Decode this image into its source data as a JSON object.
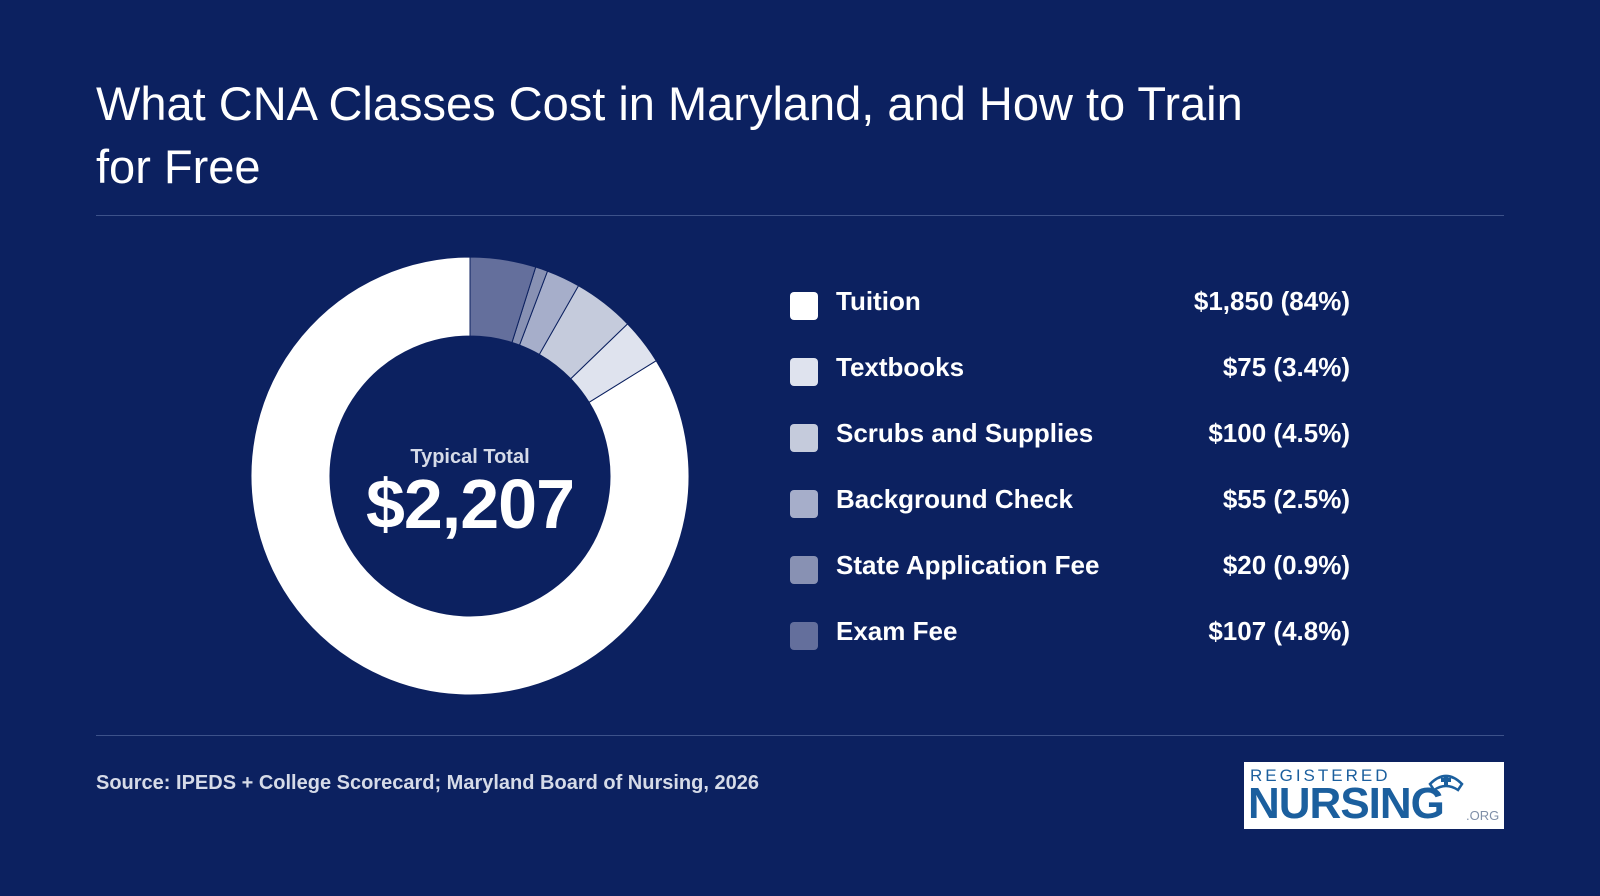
{
  "header": {
    "title": "What CNA Classes Cost in Maryland, and How to Train for Free"
  },
  "chart_data": {
    "type": "pie",
    "style": "donut",
    "categories": [
      "Tuition",
      "Textbooks",
      "Scrubs and Supplies",
      "Background Check",
      "State Application Fee",
      "Exam Fee"
    ],
    "values": [
      1850,
      75,
      100,
      55,
      20,
      107
    ],
    "percents": [
      84,
      3.4,
      4.5,
      2.5,
      0.9,
      4.8
    ],
    "value_labels": [
      "$1,850 (84%)",
      "$75 (3.4%)",
      "$100 (4.5%)",
      "$55 (2.5%)",
      "$20 (0.9%)",
      "$107 (4.8%)"
    ],
    "colors": [
      "#ffffff",
      "#dfe3ee",
      "#c5cbdc",
      "#a6aeca",
      "#8891b3",
      "#646f9c"
    ],
    "center_label": "Typical Total",
    "center_value": "$2,207",
    "legend_position": "right"
  },
  "footer": {
    "source": "Source: IPEDS + College Scorecard; Maryland Board of Nursing, 2026"
  },
  "logo": {
    "top_text": "REGISTERED",
    "main_text": "NURSING",
    "suffix_text": ".ORG",
    "color": "#1b5f9e"
  },
  "theme": {
    "background": "#0c2160",
    "divider": "#3d528a"
  }
}
